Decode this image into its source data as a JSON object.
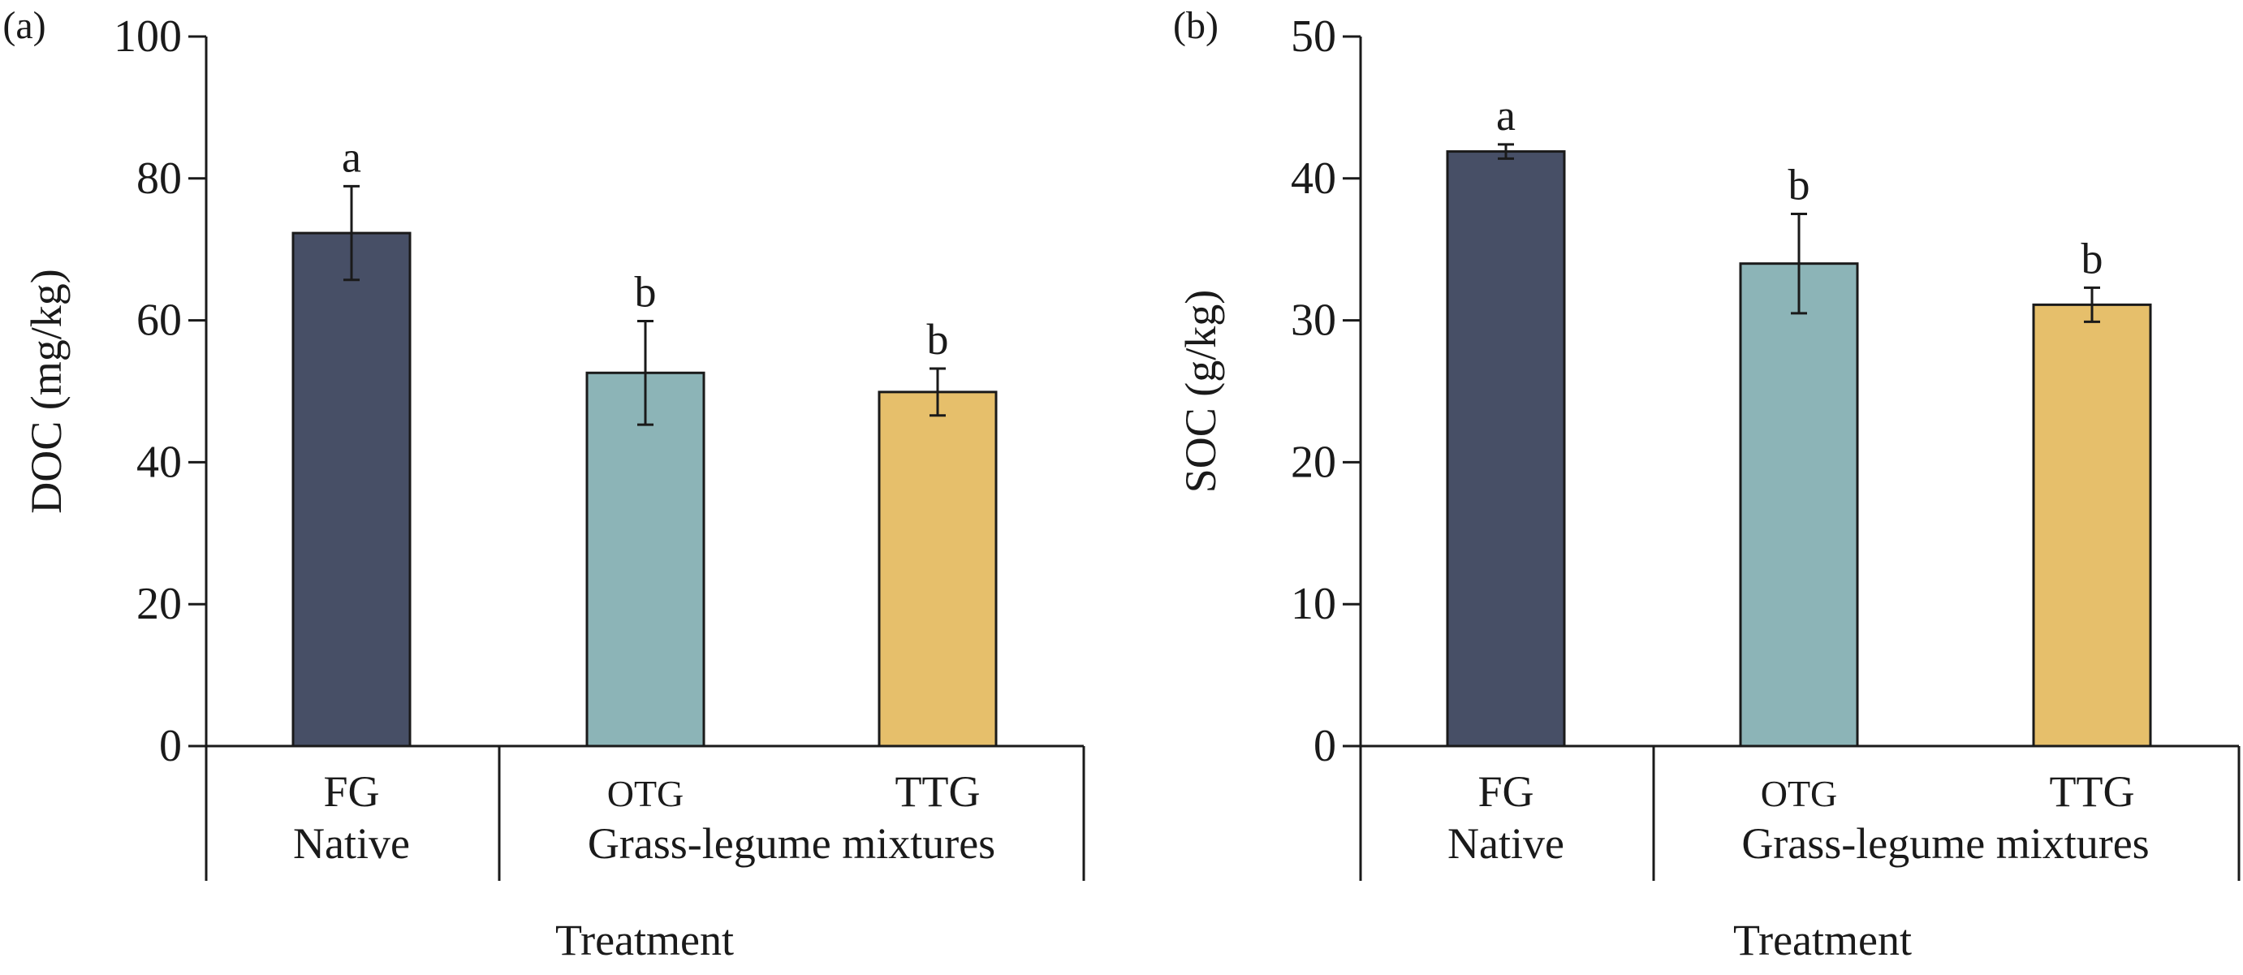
{
  "colors": {
    "FG": "#474f66",
    "OTG": "#8cb4b7",
    "TTG": "#e6bf6b",
    "axis": "#1a1a1a"
  },
  "chart_data": [
    {
      "panel_label": "(a)",
      "type": "bar",
      "categories": [
        "FG",
        "OTG",
        "TTG"
      ],
      "groups": [
        {
          "label": "Native",
          "categories": [
            "FG"
          ]
        },
        {
          "label": "Grass-legume mixtures",
          "categories": [
            "OTG",
            "TTG"
          ]
        }
      ],
      "values": [
        72.3,
        52.6,
        49.9
      ],
      "errors": [
        6.6,
        7.3,
        3.3
      ],
      "significance_letters": [
        "a",
        "b",
        "b"
      ],
      "ylabel": "DOC (mg/kg)",
      "xlabel": "Treatment",
      "ylim": [
        0,
        100
      ],
      "yticks": [
        "0",
        "20",
        "40",
        "60",
        "80",
        "100"
      ],
      "grid": false
    },
    {
      "panel_label": "(b)",
      "type": "bar",
      "categories": [
        "FG",
        "OTG",
        "TTG"
      ],
      "groups": [
        {
          "label": "Native",
          "categories": [
            "FG"
          ]
        },
        {
          "label": "Grass-legume mixtures",
          "categories": [
            "OTG",
            "TTG"
          ]
        }
      ],
      "values": [
        41.9,
        34.0,
        31.1
      ],
      "errors": [
        0.5,
        3.5,
        1.2
      ],
      "significance_letters": [
        "a",
        "b",
        "b"
      ],
      "ylabel": "SOC (g/kg)",
      "xlabel": "Treatment",
      "ylim": [
        0,
        50
      ],
      "yticks": [
        "0",
        "10",
        "20",
        "30",
        "40",
        "50"
      ],
      "grid": false
    }
  ]
}
